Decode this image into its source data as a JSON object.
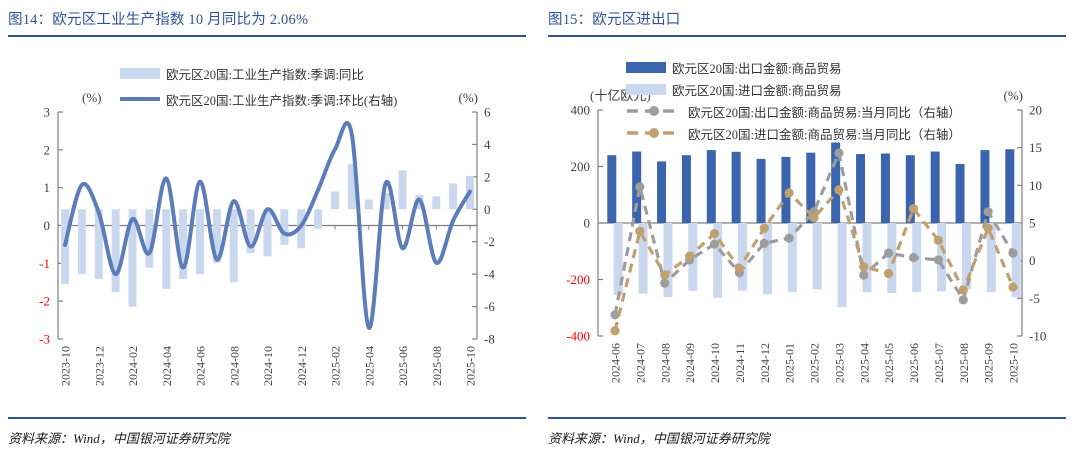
{
  "colors": {
    "title_blue": "#2E5496",
    "dark_bar_blue": "#3A64AD",
    "light_bar_blue": "#C9D8EF",
    "line_blue": "#5C7DBA",
    "dash_gray": "#9D9D9D",
    "dash_tan": "#C0A070",
    "axis_gray": "#808080",
    "tick_text": "#3F3F3F",
    "negative_red": "#FF0000"
  },
  "figures": [
    {
      "title": "图14：欧元区工业生产指数 10 月同比为 2.06%",
      "source": "资料来源：Wind，中国银河证券研究院",
      "legend": [
        {
          "swatch": "bar",
          "color": "#C9D8EF",
          "label": "欧元区20国:工业生产指数:季调:同比"
        },
        {
          "swatch": "line",
          "color": "#5C7DBA",
          "label": "欧元区20国:工业生产指数:季调:环比(右轴)"
        }
      ]
    },
    {
      "title": "图15：欧元区进出口",
      "source": "资料来源：Wind，中国银河证券研究院",
      "legend": [
        {
          "swatch": "bar",
          "color": "#3A64AD",
          "label": "欧元区20国:出口金额:商品贸易"
        },
        {
          "swatch": "bar",
          "color": "#C9D8EF",
          "label": "欧元区20国:进口金额:商品贸易"
        },
        {
          "swatch": "dash",
          "color": "#9D9D9D",
          "label": "欧元区20国:出口金额:商品贸易:当月同比（右轴）"
        },
        {
          "swatch": "dash",
          "color": "#C0A070",
          "label": "欧元区20国:进口金额:商品贸易:当月同比（右轴）"
        }
      ]
    }
  ],
  "chart_data": [
    {
      "type": "bar+line",
      "title": "欧元区工业生产指数",
      "categories": [
        "2023-10",
        "2023-11",
        "2023-12",
        "2024-01",
        "2024-02",
        "2024-03",
        "2024-04",
        "2024-05",
        "2024-06",
        "2024-07",
        "2024-08",
        "2024-09",
        "2024-10",
        "2024-11",
        "2024-12",
        "2025-01",
        "2025-02",
        "2025-03",
        "2025-04",
        "2025-05",
        "2025-06",
        "2025-07",
        "2025-08",
        "2025-09",
        "2025-10"
      ],
      "x_label_step": 2,
      "left_axis": {
        "unit": "(%)",
        "ticks": [
          3,
          2,
          1,
          0,
          -1,
          -2,
          -3
        ],
        "max": 3,
        "min": -3,
        "negative_red": true
      },
      "right_axis": {
        "unit": "(%)",
        "ticks": [
          6,
          4,
          2,
          0,
          -2,
          -4,
          -6,
          -8
        ],
        "max": 6,
        "min": -8,
        "negative_red": false
      },
      "series": [
        {
          "name": "欧元区20国:工业生产指数:季调:同比",
          "type": "bar",
          "axis": "right",
          "color": "#C9D8EF",
          "values": [
            -4.6,
            -4.0,
            -4.3,
            -5.1,
            -6.0,
            -3.6,
            -4.9,
            -4.3,
            -4.0,
            -3.3,
            -4.5,
            -2.7,
            -2.9,
            -2.2,
            -2.4,
            -1.2,
            1.1,
            2.8,
            0.6,
            1.0,
            2.4,
            0.9,
            0.8,
            1.6,
            2.06
          ]
        },
        {
          "name": "欧元区20国:工业生产指数:季调:环比(右轴)",
          "type": "line",
          "axis": "right",
          "smooth": true,
          "color": "#5C7DBA",
          "values": [
            -2.2,
            1.5,
            -0.2,
            -4.0,
            -0.6,
            -2.7,
            1.9,
            -3.6,
            1.7,
            -3.1,
            0.5,
            -2.3,
            0.0,
            -1.5,
            -1.0,
            1.2,
            3.7,
            4.6,
            -7.3,
            1.6,
            -2.4,
            0.6,
            -3.3,
            -0.7,
            1.1
          ]
        }
      ]
    },
    {
      "type": "bar+line",
      "title": "欧元区进出口",
      "categories": [
        "2024-06",
        "2024-07",
        "2024-08",
        "2024-09",
        "2024-10",
        "2024-11",
        "2024-12",
        "2025-01",
        "2025-02",
        "2025-03",
        "2025-04",
        "2025-05",
        "2025-06",
        "2025-07",
        "2025-08",
        "2025-09",
        "2025-10"
      ],
      "x_label_step": 1,
      "left_axis": {
        "unit": "(十亿欧元)",
        "ticks": [
          400,
          200,
          0,
          -200,
          -400
        ],
        "max": 400,
        "min": -400,
        "negative_red": true
      },
      "right_axis": {
        "unit": "(%)",
        "ticks": [
          20,
          15,
          10,
          5,
          0,
          -5,
          -10
        ],
        "max": 20,
        "min": -10,
        "negative_red": false
      },
      "series": [
        {
          "name": "欧元区20国:出口金额:商品贸易",
          "type": "bar",
          "axis": "left",
          "color": "#3A64AD",
          "values": [
            240,
            253,
            218,
            240,
            258,
            252,
            227,
            234,
            249,
            285,
            244,
            246,
            240,
            253,
            209,
            258,
            261
          ]
        },
        {
          "name": "欧元区20国:进口金额:商品贸易",
          "type": "bar",
          "axis": "left",
          "color": "#C9D8EF",
          "values": [
            -255,
            -250,
            -262,
            -240,
            -265,
            -240,
            -252,
            -245,
            -235,
            -298,
            -245,
            -248,
            -244,
            -242,
            -235,
            -245,
            -263
          ]
        },
        {
          "name": "欧元区20国:出口金额:商品贸易:当月同比（右轴）",
          "type": "line",
          "axis": "right",
          "smooth": false,
          "dashed": true,
          "dots": true,
          "color": "#9D9D9D",
          "values": [
            -7.2,
            9.8,
            -3.0,
            0.1,
            2.2,
            -1.6,
            2.3,
            3.0,
            6.5,
            14.3,
            -1.9,
            1.0,
            0.4,
            0.1,
            -5.2,
            6.5,
            1.0
          ]
        },
        {
          "name": "欧元区20国:进口金额:商品贸易:当月同比（右轴）",
          "type": "line",
          "axis": "right",
          "smooth": false,
          "dashed": true,
          "dots": true,
          "color": "#C0A070",
          "values": [
            -9.3,
            3.9,
            -1.9,
            0.6,
            3.6,
            -1.0,
            4.3,
            9.0,
            5.7,
            9.4,
            -0.8,
            -1.7,
            6.9,
            2.7,
            -3.9,
            4.3,
            -3.5
          ]
        }
      ]
    }
  ]
}
